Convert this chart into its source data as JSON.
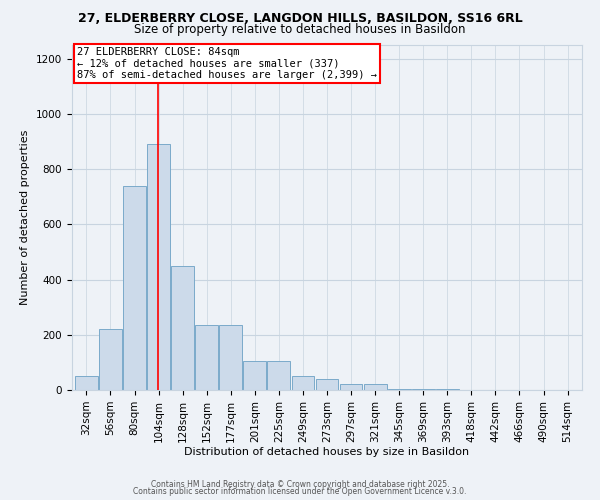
{
  "title_line1": "27, ELDERBERRY CLOSE, LANGDON HILLS, BASILDON, SS16 6RL",
  "title_line2": "Size of property relative to detached houses in Basildon",
  "xlabel": "Distribution of detached houses by size in Basildon",
  "ylabel": "Number of detached properties",
  "bar_labels": [
    "32sqm",
    "56sqm",
    "80sqm",
    "104sqm",
    "128sqm",
    "152sqm",
    "177sqm",
    "201sqm",
    "225sqm",
    "249sqm",
    "273sqm",
    "297sqm",
    "321sqm",
    "345sqm",
    "369sqm",
    "393sqm",
    "418sqm",
    "442sqm",
    "466sqm",
    "490sqm",
    "514sqm"
  ],
  "bar_values": [
    50,
    220,
    740,
    890,
    450,
    235,
    235,
    105,
    105,
    50,
    40,
    20,
    20,
    5,
    5,
    5,
    0,
    0,
    0,
    0,
    0
  ],
  "bar_color": "#ccdaea",
  "bar_edge_color": "#7aaaca",
  "ylim": [
    0,
    1250
  ],
  "yticks": [
    0,
    200,
    400,
    600,
    800,
    1000,
    1200
  ],
  "annotation_line1": "27 ELDERBERRY CLOSE: 84sqm",
  "annotation_line2": "← 12% of detached houses are smaller (337)",
  "annotation_line3": "87% of semi-detached houses are larger (2,399) →",
  "vline_x_index": 2.97,
  "footnote1": "Contains HM Land Registry data © Crown copyright and database right 2025.",
  "footnote2": "Contains public sector information licensed under the Open Government Licence v.3.0.",
  "bg_color": "#eef2f7",
  "grid_color": "#c8d4e0",
  "title_fontsize": 9,
  "subtitle_fontsize": 8.5,
  "ylabel_fontsize": 8,
  "xlabel_fontsize": 8,
  "tick_fontsize": 7.5,
  "annot_fontsize": 7.5
}
